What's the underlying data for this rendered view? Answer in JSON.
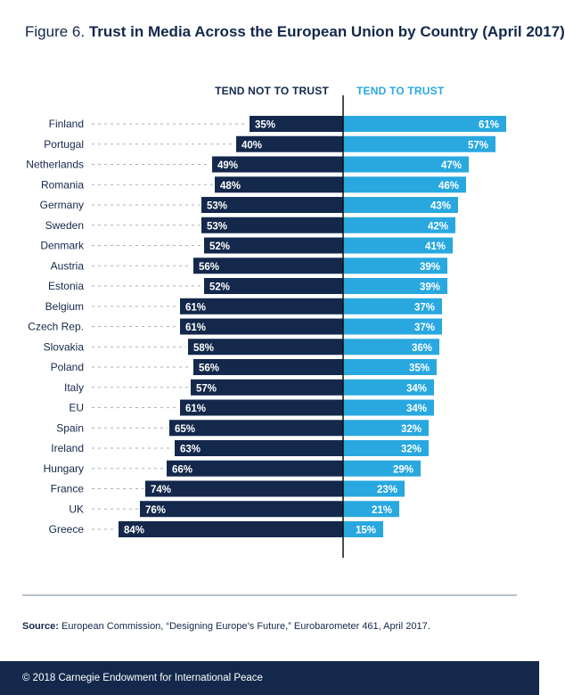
{
  "title_prefix": "Figure 6.",
  "title_main": "Trust in Media Across the European Union by Country (April 2017)",
  "chart_data": {
    "type": "bar",
    "orientation": "horizontal-diverging",
    "categories": [
      "Finland",
      "Portugal",
      "Netherlands",
      "Romania",
      "Germany",
      "Sweden",
      "Denmark",
      "Austria",
      "Estonia",
      "Belgium",
      "Czech Rep.",
      "Slovakia",
      "Poland",
      "Italy",
      "EU",
      "Spain",
      "Ireland",
      "Hungary",
      "France",
      "UK",
      "Greece"
    ],
    "series": [
      {
        "name": "TEND NOT TO TRUST",
        "color": "#13284b",
        "values": [
          35,
          40,
          49,
          48,
          53,
          53,
          52,
          56,
          52,
          61,
          61,
          58,
          56,
          57,
          61,
          65,
          63,
          66,
          74,
          76,
          84
        ]
      },
      {
        "name": "TEND TO TRUST",
        "color": "#29a8e0",
        "values": [
          61,
          57,
          47,
          46,
          43,
          42,
          41,
          39,
          39,
          37,
          37,
          36,
          35,
          34,
          34,
          32,
          32,
          29,
          23,
          21,
          15
        ]
      }
    ],
    "value_suffix": "%"
  },
  "source_label": "Source:",
  "source_text": " European Commission, “Designing Europe’s Future,” Eurobarometer 461, April 2017.",
  "footer": "© 2018 Carnegie Endowment for International Peace"
}
